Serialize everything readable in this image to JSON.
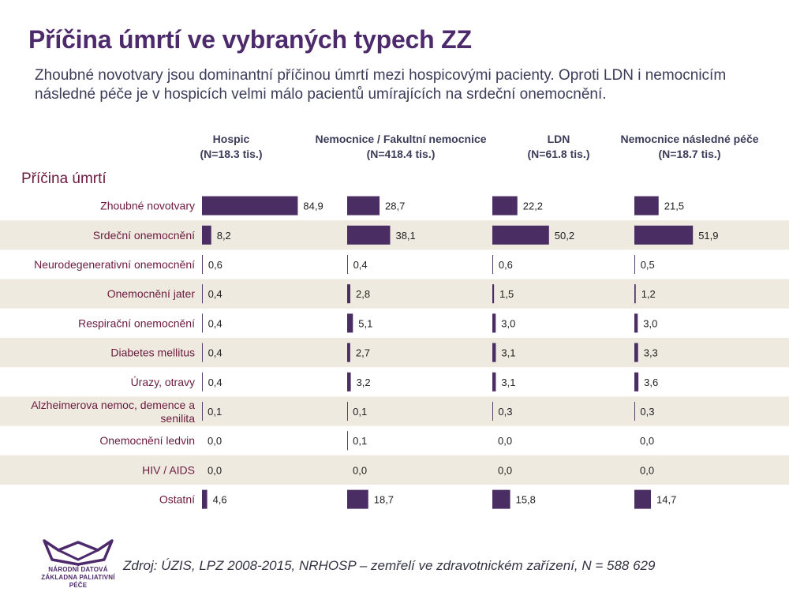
{
  "page": {
    "title": "Příčina úmrtí ve vybraných typech ZZ",
    "subtitle": "Zhoubné novotvary jsou dominantní příčinou úmrtí mezi hospicovými pacienty. Oproti LDN i nemocnicím následné péče je v hospicích velmi málo pacientů umírajících na srdeční onemocnění.",
    "source": "Zdroj: ÚZIS, LPZ 2008-2015, NRHOSP – zemřelí ve zdravotnickém zařízení, N = 588 629",
    "logo_lines": [
      "NÁRODNÍ DATOVÁ",
      "ZÁKLADNA PALIATIVNÍ PÉČE"
    ]
  },
  "colors": {
    "bar": "#4a2d62",
    "title": "#4d2a6b",
    "row_band": "#eeeae0",
    "category_text": "#6b1a3e",
    "value_text": "#222222",
    "header_text": "#3c3c5a"
  },
  "chart_data": {
    "type": "bar",
    "orientation": "horizontal",
    "layout": "small-multiples",
    "category_axis_label": "Příčina úmrtí",
    "categories": [
      "Zhoubné novotvary",
      "Srdeční onemocnění",
      "Neurodegenerativní onemocnění",
      "Onemocnění jater",
      "Respirační onemocnění",
      "Diabetes mellitus",
      "Úrazy, otravy",
      "Alzheimerova nemoc, demence a senilita",
      "Onemocnění ledvin",
      "HIV / AIDS",
      "Ostatní"
    ],
    "series": [
      {
        "name": "Hospic",
        "n_label": "(N=18.3 tis.)",
        "values": [
          84.9,
          8.2,
          0.6,
          0.4,
          0.4,
          0.4,
          0.4,
          0.1,
          0.0,
          0.0,
          4.6
        ],
        "labels": [
          "84,9",
          "8,2",
          "0,6",
          "0,4",
          "0,4",
          "0,4",
          "0,4",
          "0,1",
          "0,0",
          "0,0",
          "4,6"
        ]
      },
      {
        "name": "Nemocnice / Fakultní nemocnice",
        "n_label": "(N=418.4 tis.)",
        "values": [
          28.7,
          38.1,
          0.4,
          2.8,
          5.1,
          2.7,
          3.2,
          0.1,
          0.1,
          0.0,
          18.7
        ],
        "labels": [
          "28,7",
          "38,1",
          "0,4",
          "2,8",
          "5,1",
          "2,7",
          "3,2",
          "0,1",
          "0,1",
          "0,0",
          "18,7"
        ]
      },
      {
        "name": "LDN",
        "n_label": "(N=61.8 tis.)",
        "values": [
          22.2,
          50.2,
          0.6,
          1.5,
          3.0,
          3.1,
          3.1,
          0.3,
          0.0,
          0.0,
          15.8
        ],
        "labels": [
          "22,2",
          "50,2",
          "0,6",
          "1,5",
          "3,0",
          "3,1",
          "3,1",
          "0,3",
          "0,0",
          "0,0",
          "15,8"
        ]
      },
      {
        "name": "Nemocnice následné péče",
        "n_label": "(N=18.7 tis.)",
        "values": [
          21.5,
          51.9,
          0.5,
          1.2,
          3.0,
          3.3,
          3.6,
          0.3,
          0.0,
          0.0,
          14.7
        ],
        "labels": [
          "21,5",
          "51,9",
          "0,5",
          "1,2",
          "3,0",
          "3,3",
          "3,6",
          "0,3",
          "0,0",
          "0,0",
          "14,7"
        ]
      }
    ]
  }
}
